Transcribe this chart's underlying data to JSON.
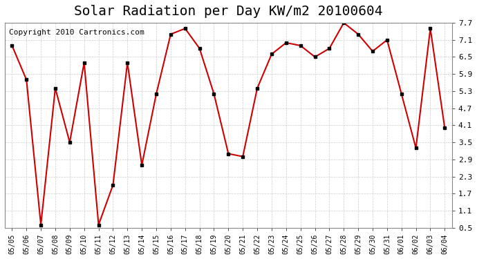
{
  "title": "Solar Radiation per Day KW/m2 20100604",
  "copyright": "Copyright 2010 Cartronics.com",
  "dates": [
    "05/05",
    "05/06",
    "05/07",
    "05/08",
    "05/09",
    "05/10",
    "05/11",
    "05/12",
    "05/13",
    "05/14",
    "05/15",
    "05/16",
    "05/17",
    "05/18",
    "05/19",
    "05/20",
    "05/21",
    "05/22",
    "05/23",
    "05/24",
    "05/25",
    "05/26",
    "05/27",
    "05/28",
    "05/29",
    "05/30",
    "05/31",
    "06/01",
    "06/02",
    "06/03",
    "06/04"
  ],
  "values": [
    6.9,
    5.7,
    0.6,
    5.4,
    3.5,
    6.3,
    0.6,
    2.0,
    6.3,
    2.7,
    5.2,
    7.3,
    7.5,
    6.8,
    5.2,
    3.1,
    3.0,
    5.4,
    6.6,
    7.0,
    6.9,
    6.5,
    6.8,
    7.7,
    7.3,
    6.7,
    7.1,
    5.2,
    3.3,
    7.5,
    4.0
  ],
  "yticks": [
    0.5,
    1.1,
    1.7,
    2.3,
    2.9,
    3.5,
    4.1,
    4.7,
    5.3,
    5.9,
    6.5,
    7.1,
    7.7
  ],
  "ylim": [
    0.5,
    7.7
  ],
  "line_color": "#cc0000",
  "marker_color": "#000000",
  "grid_color": "#cccccc",
  "bg_color": "#ffffff",
  "title_fontsize": 14,
  "copyright_fontsize": 8
}
